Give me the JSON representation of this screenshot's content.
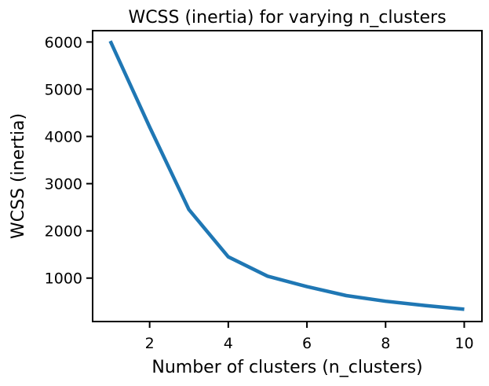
{
  "chart_data": {
    "type": "line",
    "title": "WCSS (inertia) for varying n_clusters",
    "xlabel": "Number of clusters (n_clusters)",
    "ylabel": "WCSS (inertia)",
    "x": [
      1,
      2,
      3,
      4,
      5,
      6,
      7,
      8,
      9,
      10
    ],
    "series": [
      {
        "values": [
          6020,
          4200,
          2450,
          1450,
          1040,
          820,
          630,
          510,
          420,
          340
        ],
        "color": "#1f77b4"
      }
    ],
    "xlim": [
      0.55,
      10.45
    ],
    "ylim": [
      80,
      6240
    ],
    "xticks": [
      2,
      4,
      6,
      8,
      10
    ],
    "yticks": [
      1000,
      2000,
      3000,
      4000,
      5000,
      6000
    ],
    "grid": false,
    "legend": "none"
  }
}
